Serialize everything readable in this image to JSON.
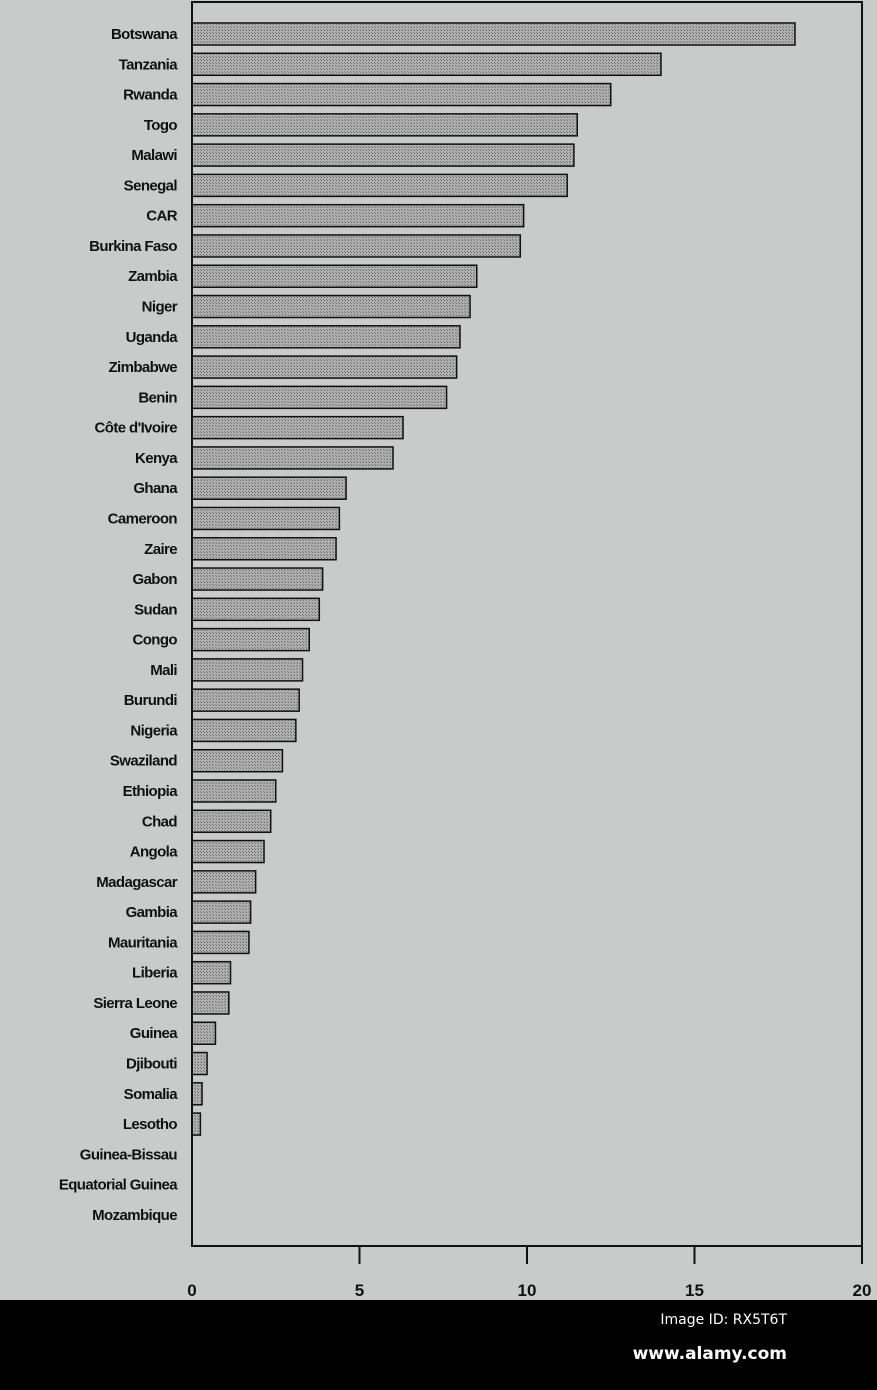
{
  "chart_data": {
    "type": "bar",
    "orientation": "horizontal",
    "title": "",
    "xlabel": "",
    "ylabel": "",
    "xlim": [
      0,
      20
    ],
    "xticks": [
      0,
      5,
      10,
      15,
      20
    ],
    "grid": false,
    "bar_color": "#9a9a9a",
    "categories": [
      "Botswana",
      "Tanzania",
      "Rwanda",
      "Togo",
      "Malawi",
      "Senegal",
      "CAR",
      "Burkina Faso",
      "Zambia",
      "Niger",
      "Uganda",
      "Zimbabwe",
      "Benin",
      "Côte d'Ivoire",
      "Kenya",
      "Ghana",
      "Cameroon",
      "Zaire",
      "Gabon",
      "Sudan",
      "Congo",
      "Mali",
      "Burundi",
      "Nigeria",
      "Swaziland",
      "Ethiopia",
      "Chad",
      "Angola",
      "Madagascar",
      "Gambia",
      "Mauritania",
      "Liberia",
      "Sierra Leone",
      "Guinea",
      "Djibouti",
      "Somalia",
      "Lesotho",
      "Guinea-Bissau",
      "Equatorial Guinea",
      "Mozambique"
    ],
    "values": [
      18.0,
      14.0,
      12.5,
      11.5,
      11.4,
      11.2,
      9.9,
      9.8,
      8.5,
      8.3,
      8.0,
      7.9,
      7.6,
      6.3,
      6.0,
      4.6,
      4.4,
      4.3,
      3.9,
      3.8,
      3.5,
      3.3,
      3.2,
      3.1,
      2.7,
      2.5,
      2.35,
      2.15,
      1.9,
      1.75,
      1.7,
      1.15,
      1.1,
      0.7,
      0.45,
      0.3,
      0.25,
      0,
      0,
      0
    ]
  },
  "footer": {
    "image_id": "Image ID: RX5T6T",
    "site": "www.alamy.com"
  }
}
